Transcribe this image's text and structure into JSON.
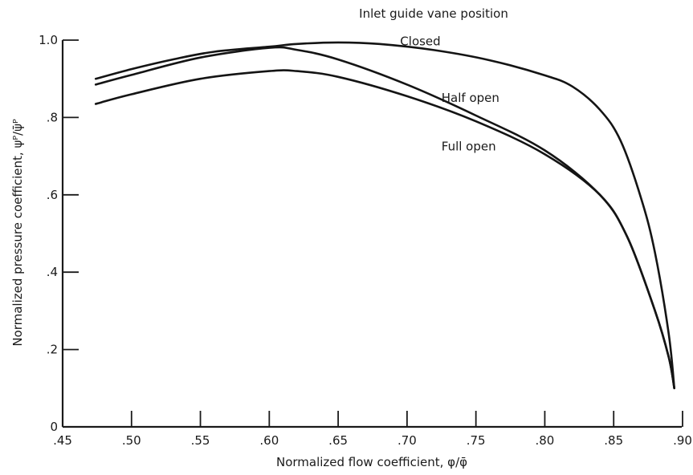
{
  "chart_data": {
    "type": "line",
    "title": "",
    "legend_title": "Inlet guide vane position",
    "xlabel": "Normalized flow coefficient, φ/φ̄",
    "ylabel": "Normalized pressure coefficient, ψᴾ/ψ̄ᴾ",
    "xlim": [
      0.45,
      0.9
    ],
    "ylim": [
      0,
      1.0
    ],
    "xticks": [
      0.45,
      0.5,
      0.55,
      0.6,
      0.65,
      0.7,
      0.75,
      0.8,
      0.85,
      0.9
    ],
    "xtick_labels": [
      ".45",
      ".50",
      ".55",
      ".60",
      ".65",
      ".70",
      ".75",
      ".80",
      ".85",
      ".90"
    ],
    "yticks": [
      0,
      0.2,
      0.4,
      0.6,
      0.8,
      1.0
    ],
    "ytick_labels": [
      "0",
      ".2",
      ".4",
      ".6",
      ".8",
      "1.0"
    ],
    "grid": false,
    "series": [
      {
        "name": "Closed",
        "x": [
          0.474,
          0.5,
          0.53,
          0.56,
          0.6,
          0.62,
          0.65,
          0.68,
          0.72,
          0.76,
          0.8,
          0.82,
          0.84,
          0.855,
          0.87,
          0.88,
          0.89,
          0.894
        ],
        "y": [
          0.9,
          0.925,
          0.95,
          0.97,
          0.983,
          0.99,
          0.994,
          0.99,
          0.974,
          0.948,
          0.909,
          0.88,
          0.82,
          0.74,
          0.59,
          0.45,
          0.24,
          0.1
        ]
      },
      {
        "name": "Half open",
        "x": [
          0.474,
          0.5,
          0.55,
          0.6,
          0.62,
          0.65,
          0.7,
          0.75,
          0.8,
          0.84,
          0.86,
          0.88,
          0.89,
          0.894
        ],
        "y": [
          0.885,
          0.91,
          0.955,
          0.98,
          0.975,
          0.95,
          0.885,
          0.805,
          0.715,
          0.6,
          0.49,
          0.3,
          0.18,
          0.1
        ]
      },
      {
        "name": "Full open",
        "x": [
          0.474,
          0.5,
          0.55,
          0.6,
          0.62,
          0.65,
          0.7,
          0.75,
          0.8,
          0.84,
          0.86,
          0.88,
          0.89,
          0.894
        ],
        "y": [
          0.835,
          0.86,
          0.9,
          0.92,
          0.92,
          0.905,
          0.855,
          0.79,
          0.705,
          0.6,
          0.49,
          0.3,
          0.18,
          0.1
        ]
      }
    ],
    "annotations": [
      {
        "text": "Closed",
        "x": 0.695,
        "y": 0.986
      },
      {
        "text": "Half open",
        "x": 0.725,
        "y": 0.84
      },
      {
        "text": "Full open",
        "x": 0.725,
        "y": 0.715
      }
    ]
  }
}
